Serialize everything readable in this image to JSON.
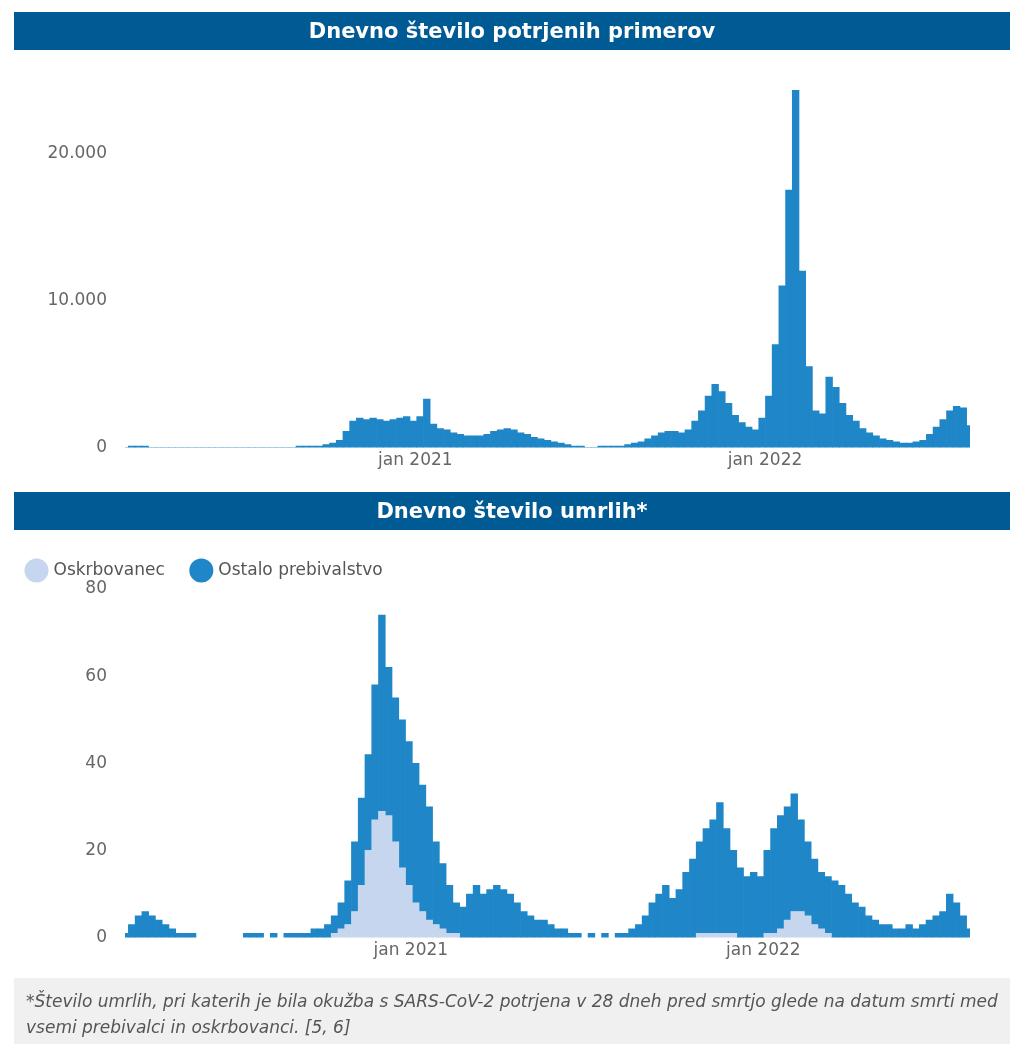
{
  "chart_data": [
    {
      "type": "bar",
      "title": "Dnevno število potrjenih primerov",
      "color": "#1f86c8",
      "x": [
        "2020-03-04",
        "2020-03-11",
        "2020-03-18",
        "2020-03-25",
        "2020-04-01",
        "2020-04-08",
        "2020-04-15",
        "2020-04-22",
        "2020-04-29",
        "2020-05-06",
        "2020-05-13",
        "2020-05-20",
        "2020-05-27",
        "2020-06-03",
        "2020-06-10",
        "2020-06-17",
        "2020-06-24",
        "2020-07-01",
        "2020-07-08",
        "2020-07-15",
        "2020-07-22",
        "2020-07-29",
        "2020-08-05",
        "2020-08-12",
        "2020-08-19",
        "2020-08-26",
        "2020-09-02",
        "2020-09-09",
        "2020-09-16",
        "2020-09-23",
        "2020-09-30",
        "2020-10-07",
        "2020-10-14",
        "2020-10-21",
        "2020-10-28",
        "2020-11-04",
        "2020-11-11",
        "2020-11-18",
        "2020-11-25",
        "2020-12-02",
        "2020-12-09",
        "2020-12-16",
        "2020-12-23",
        "2020-12-30",
        "2021-01-06",
        "2021-01-13",
        "2021-01-20",
        "2021-01-27",
        "2021-02-03",
        "2021-02-10",
        "2021-02-17",
        "2021-02-24",
        "2021-03-03",
        "2021-03-10",
        "2021-03-17",
        "2021-03-24",
        "2021-03-31",
        "2021-04-07",
        "2021-04-14",
        "2021-04-21",
        "2021-04-28",
        "2021-05-05",
        "2021-05-12",
        "2021-05-19",
        "2021-05-26",
        "2021-06-02",
        "2021-06-09",
        "2021-06-16",
        "2021-06-23",
        "2021-06-30",
        "2021-07-07",
        "2021-07-14",
        "2021-07-21",
        "2021-07-28",
        "2021-08-04",
        "2021-08-11",
        "2021-08-18",
        "2021-08-25",
        "2021-09-01",
        "2021-09-08",
        "2021-09-15",
        "2021-09-22",
        "2021-09-29",
        "2021-10-06",
        "2021-10-13",
        "2021-10-20",
        "2021-10-27",
        "2021-11-03",
        "2021-11-10",
        "2021-11-17",
        "2021-11-24",
        "2021-12-01",
        "2021-12-08",
        "2021-12-15",
        "2021-12-22",
        "2021-12-29",
        "2022-01-05",
        "2022-01-12",
        "2022-01-19",
        "2022-01-26",
        "2022-02-02",
        "2022-02-09",
        "2022-02-16",
        "2022-02-23",
        "2022-03-02",
        "2022-03-09",
        "2022-03-16",
        "2022-03-23",
        "2022-03-30",
        "2022-04-06",
        "2022-04-13",
        "2022-04-20",
        "2022-04-27",
        "2022-05-04",
        "2022-05-11",
        "2022-05-18",
        "2022-05-25",
        "2022-06-01",
        "2022-06-08",
        "2022-06-15",
        "2022-06-22",
        "2022-06-29",
        "2022-07-06",
        "2022-07-13",
        "2022-07-20",
        "2022-07-27",
        "2022-08-03"
      ],
      "values": [
        0,
        100,
        100,
        100,
        0,
        0,
        0,
        0,
        0,
        0,
        0,
        0,
        0,
        0,
        0,
        0,
        0,
        0,
        0,
        0,
        0,
        0,
        0,
        0,
        0,
        0,
        100,
        100,
        100,
        100,
        200,
        300,
        500,
        1100,
        1800,
        2000,
        1900,
        2000,
        1900,
        1800,
        1900,
        2000,
        2100,
        1800,
        2100,
        3300,
        1600,
        1300,
        1200,
        1000,
        900,
        800,
        800,
        800,
        900,
        1100,
        1200,
        1300,
        1200,
        1000,
        900,
        700,
        600,
        500,
        400,
        300,
        200,
        100,
        100,
        0,
        0,
        100,
        100,
        100,
        100,
        200,
        300,
        400,
        600,
        800,
        1000,
        1100,
        1100,
        1000,
        1200,
        1800,
        2500,
        3500,
        4300,
        3800,
        3000,
        2200,
        1700,
        1400,
        1200,
        2000,
        3500,
        7000,
        11000,
        17500,
        24300,
        12000,
        5500,
        2500,
        2300,
        4800,
        4100,
        3000,
        2200,
        1800,
        1300,
        1000,
        800,
        600,
        500,
        400,
        300,
        300,
        400,
        500,
        900,
        1400,
        1900,
        2500,
        2800,
        2700,
        1500
      ],
      "xlim": [
        "2020-03-04",
        "2022-08-03"
      ],
      "xticks": [
        {
          "value": "2021-01-01",
          "label": "jan 2021"
        },
        {
          "value": "2022-01-01",
          "label": "jan 2022"
        }
      ],
      "ylim": [
        0,
        24300
      ],
      "yticks": [
        {
          "value": 0,
          "label": "0"
        },
        {
          "value": 10000,
          "label": "10.000"
        },
        {
          "value": 20000,
          "label": "20.000"
        }
      ]
    },
    {
      "type": "bar",
      "title": "Dnevno število umrlih*",
      "stacked": true,
      "legend": "top left",
      "x": [
        "2020-03-11",
        "2020-03-18",
        "2020-03-25",
        "2020-04-01",
        "2020-04-08",
        "2020-04-15",
        "2020-04-22",
        "2020-04-29",
        "2020-05-06",
        "2020-05-13",
        "2020-05-20",
        "2020-05-27",
        "2020-06-03",
        "2020-06-10",
        "2020-06-17",
        "2020-06-24",
        "2020-07-01",
        "2020-07-08",
        "2020-07-15",
        "2020-07-22",
        "2020-07-29",
        "2020-08-05",
        "2020-08-12",
        "2020-08-19",
        "2020-08-26",
        "2020-09-02",
        "2020-09-09",
        "2020-09-16",
        "2020-09-23",
        "2020-09-30",
        "2020-10-07",
        "2020-10-14",
        "2020-10-21",
        "2020-10-28",
        "2020-11-04",
        "2020-11-11",
        "2020-11-18",
        "2020-11-25",
        "2020-12-02",
        "2020-12-09",
        "2020-12-16",
        "2020-12-23",
        "2020-12-30",
        "2021-01-06",
        "2021-01-13",
        "2021-01-20",
        "2021-01-27",
        "2021-02-03",
        "2021-02-10",
        "2021-02-17",
        "2021-02-24",
        "2021-03-03",
        "2021-03-10",
        "2021-03-17",
        "2021-03-24",
        "2021-03-31",
        "2021-04-07",
        "2021-04-14",
        "2021-04-21",
        "2021-04-28",
        "2021-05-05",
        "2021-05-12",
        "2021-05-19",
        "2021-05-26",
        "2021-06-02",
        "2021-06-09",
        "2021-06-16",
        "2021-06-23",
        "2021-06-30",
        "2021-07-07",
        "2021-07-14",
        "2021-07-21",
        "2021-07-28",
        "2021-08-04",
        "2021-08-11",
        "2021-08-18",
        "2021-08-25",
        "2021-09-01",
        "2021-09-08",
        "2021-09-15",
        "2021-09-22",
        "2021-09-29",
        "2021-10-06",
        "2021-10-13",
        "2021-10-20",
        "2021-10-27",
        "2021-11-03",
        "2021-11-10",
        "2021-11-17",
        "2021-11-24",
        "2021-12-01",
        "2021-12-08",
        "2021-12-15",
        "2021-12-22",
        "2021-12-29",
        "2022-01-05",
        "2022-01-12",
        "2022-01-19",
        "2022-01-26",
        "2022-02-02",
        "2022-02-09",
        "2022-02-16",
        "2022-02-23",
        "2022-03-02",
        "2022-03-09",
        "2022-03-16",
        "2022-03-23",
        "2022-03-30",
        "2022-04-06",
        "2022-04-13",
        "2022-04-20",
        "2022-04-27",
        "2022-05-04",
        "2022-05-11",
        "2022-05-18",
        "2022-05-25",
        "2022-06-01",
        "2022-06-08",
        "2022-06-15",
        "2022-06-22",
        "2022-06-29",
        "2022-07-06",
        "2022-07-13",
        "2022-07-20",
        "2022-07-27",
        "2022-08-03"
      ],
      "series": [
        {
          "name": "Oskrbovanec",
          "color": "#c5d6ee",
          "values": [
            null,
            null,
            null,
            null,
            null,
            null,
            null,
            null,
            null,
            null,
            null,
            null,
            null,
            null,
            null,
            null,
            null,
            null,
            null,
            null,
            null,
            null,
            null,
            null,
            null,
            null,
            null,
            null,
            null,
            null,
            null,
            1,
            2,
            3,
            6,
            12,
            20,
            27,
            29,
            28,
            22,
            16,
            12,
            8,
            6,
            4,
            3,
            2,
            1,
            1,
            null,
            null,
            null,
            null,
            null,
            null,
            null,
            null,
            null,
            null,
            null,
            null,
            null,
            null,
            null,
            null,
            null,
            null,
            null,
            null,
            null,
            null,
            null,
            null,
            null,
            null,
            null,
            null,
            null,
            null,
            null,
            null,
            null,
            null,
            null,
            1,
            1,
            1,
            1,
            1,
            1,
            null,
            null,
            null,
            null,
            1,
            1,
            2,
            4,
            6,
            6,
            5,
            3,
            2,
            1,
            null,
            null,
            null,
            null,
            null,
            null,
            null,
            null,
            null,
            null,
            null,
            null,
            null,
            null,
            null,
            null,
            null,
            null,
            null,
            null,
            null
          ]
        },
        {
          "name": "Ostalo prebivalstvo",
          "color": "#1f86c8",
          "values": [
            1,
            3,
            5,
            6,
            5,
            4,
            3,
            2,
            1,
            1,
            1,
            null,
            null,
            null,
            null,
            null,
            null,
            null,
            1,
            1,
            1,
            null,
            1,
            null,
            1,
            1,
            1,
            1,
            2,
            2,
            3,
            4,
            6,
            10,
            16,
            20,
            22,
            31,
            45,
            34,
            33,
            34,
            33,
            32,
            29,
            26,
            19,
            15,
            11,
            7,
            7,
            10,
            12,
            10,
            11,
            12,
            11,
            10,
            8,
            6,
            5,
            4,
            4,
            3,
            2,
            2,
            1,
            1,
            null,
            1,
            null,
            1,
            null,
            1,
            1,
            2,
            3,
            5,
            8,
            10,
            12,
            9,
            11,
            15,
            18,
            21,
            24,
            26,
            30,
            24,
            19,
            16,
            14,
            15,
            14,
            19,
            24,
            26,
            26,
            27,
            21,
            17,
            15,
            13,
            13,
            13,
            12,
            10,
            8,
            7,
            5,
            4,
            3,
            3,
            2,
            2,
            3,
            2,
            3,
            4,
            5,
            6,
            10,
            8,
            5,
            2
          ]
        }
      ],
      "xlim": [
        "2020-03-11",
        "2022-08-03"
      ],
      "xticks": [
        {
          "value": "2021-01-01",
          "label": "jan 2021"
        },
        {
          "value": "2022-01-01",
          "label": "jan 2022"
        }
      ],
      "ylim": [
        0,
        80
      ],
      "yticks": [
        0,
        20,
        40,
        60,
        80
      ],
      "annotations": [
        "*Število umrlih, pri katerih je bila okužba s SARS-CoV-2 potrjena v 28 dneh pred smrtjo glede na datum smrti med vsemi prebivalci in oskrbovanci. [5, 6]"
      ]
    }
  ]
}
